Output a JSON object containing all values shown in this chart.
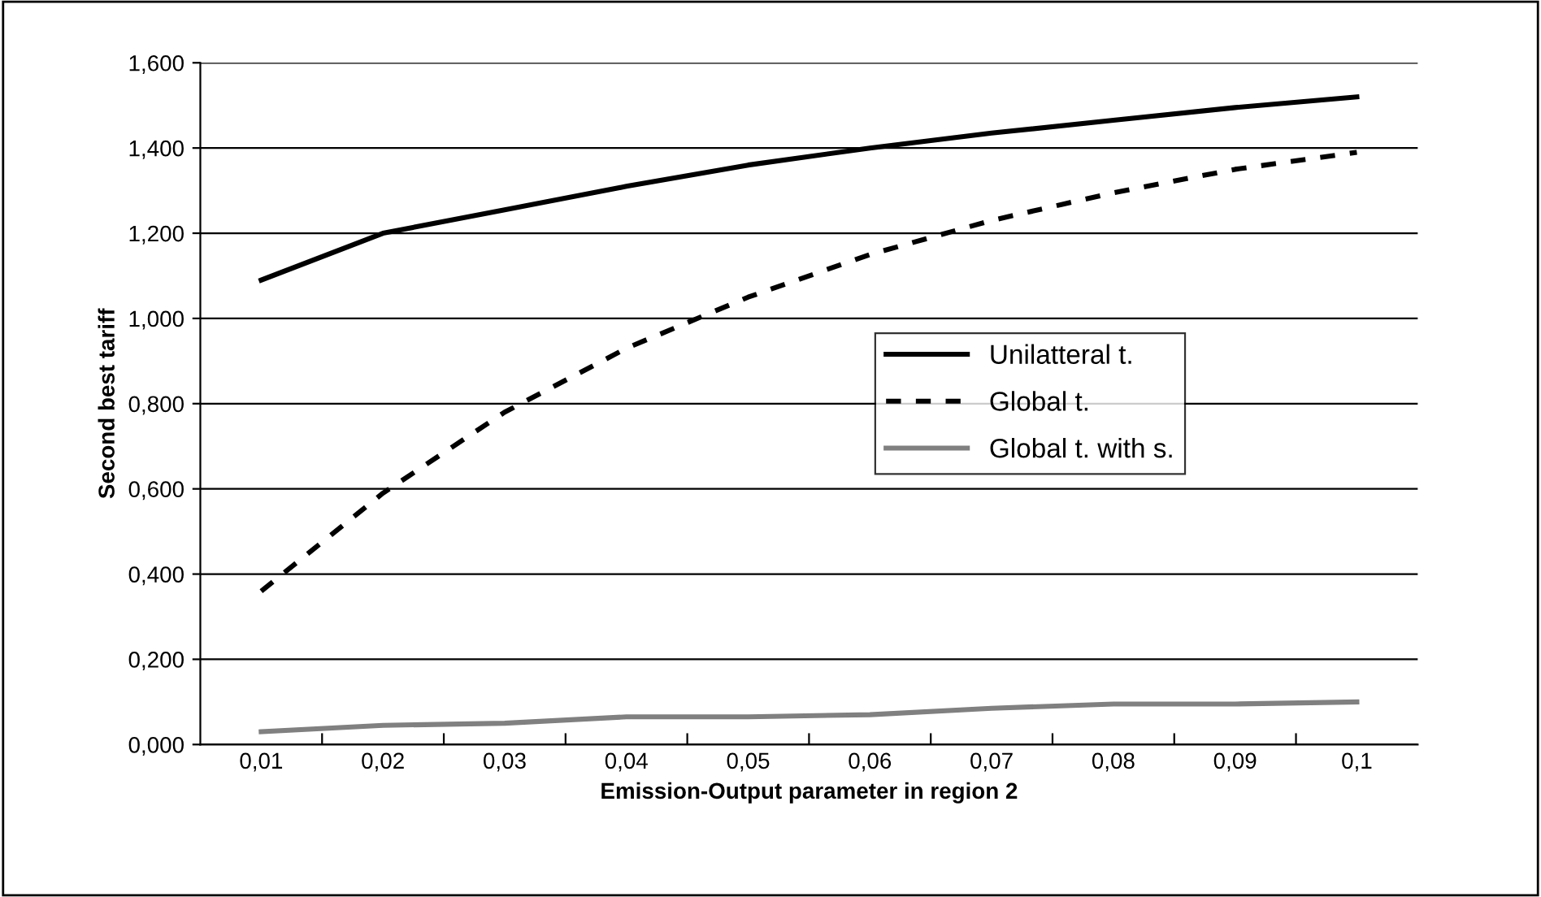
{
  "chart_data": {
    "type": "line",
    "xlabel": "Emission-Output parameter in region 2",
    "ylabel": "Second best tariff",
    "categories": [
      "0,01",
      "0,02",
      "0,03",
      "0,04",
      "0,05",
      "0,06",
      "0,07",
      "0,08",
      "0,09",
      "0,1"
    ],
    "series": [
      {
        "name": "Unilatteral t.",
        "color": "#000000",
        "line_style": "solid",
        "values": [
          1.09,
          1.2,
          1.255,
          1.31,
          1.36,
          1.4,
          1.435,
          1.465,
          1.495,
          1.52
        ]
      },
      {
        "name": "Global t.",
        "color": "#000000",
        "line_style": "dashed",
        "values": [
          0.36,
          0.59,
          0.78,
          0.93,
          1.05,
          1.15,
          1.23,
          1.295,
          1.35,
          1.39
        ]
      },
      {
        "name": "Global t. with s.",
        "color": "#808080",
        "line_style": "solid",
        "values": [
          0.03,
          0.045,
          0.05,
          0.065,
          0.065,
          0.07,
          0.085,
          0.095,
          0.095,
          0.1
        ]
      }
    ],
    "ylim": [
      0,
      1.6
    ],
    "yticks": [
      {
        "value": 0,
        "label": "0,000"
      },
      {
        "value": 0.2,
        "label": "0,200"
      },
      {
        "value": 0.4,
        "label": "0,400"
      },
      {
        "value": 0.6,
        "label": "0,600"
      },
      {
        "value": 0.8,
        "label": "0,800"
      },
      {
        "value": 1.0,
        "label": "1,000"
      },
      {
        "value": 1.2,
        "label": "1,200"
      },
      {
        "value": 1.4,
        "label": "1,400"
      },
      {
        "value": 1.6,
        "label": "1,600"
      }
    ],
    "grid": "y",
    "legend": "center right",
    "marker": "none"
  }
}
